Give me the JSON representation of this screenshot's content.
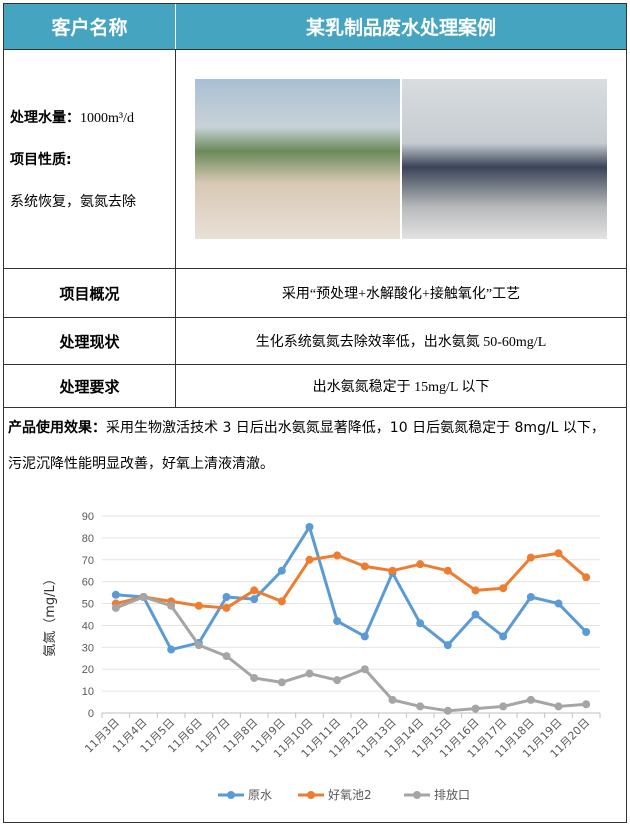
{
  "header": {
    "col1": "客户名称",
    "col2": "某乳制品废水处理案例"
  },
  "info": {
    "volume_label": "处理水量：",
    "volume_value": "1000m³/d",
    "nature_label": "项目性质:",
    "nature_value": "系统恢复，氨氮去除"
  },
  "rows": [
    {
      "label": "项目概况",
      "value": "采用“预处理+水解酸化+接触氧化”工艺"
    },
    {
      "label": "处理现状",
      "value": "生化系统氨氮去除效率低，出水氨氮 50-60mg/L"
    },
    {
      "label": "处理要求",
      "value": "出水氨氮稳定于 15mg/L 以下"
    }
  ],
  "effect": {
    "label": "产品使用效果：",
    "text": "采用生物激活技术 3 日后出水氨氮显著降低，10 日后氨氮稳定于 8mg/L 以下，污泥沉降性能明显改善，好氧上清液清澈。"
  },
  "chart_data": {
    "type": "line",
    "ylabel": "氨氮（mg/L）",
    "ylim": [
      0,
      90
    ],
    "yticks": [
      0,
      10,
      20,
      30,
      40,
      50,
      60,
      70,
      80,
      90
    ],
    "grid": true,
    "legend_position": "bottom",
    "categories": [
      "11月3日",
      "11月4日",
      "11月5日",
      "11月6日",
      "11月7日",
      "11月8日",
      "11月9日",
      "11月10日",
      "11月11日",
      "11月12日",
      "11月13日",
      "11月14日",
      "11月15日",
      "11月16日",
      "11月17日",
      "11月18日",
      "11月19日",
      "11月20日"
    ],
    "series": [
      {
        "name": "原水",
        "color": "#5b9bd5",
        "values": [
          54,
          53,
          29,
          32,
          53,
          52,
          65,
          85,
          42,
          35,
          64,
          41,
          31,
          45,
          35,
          53,
          50,
          37
        ]
      },
      {
        "name": "好氧池2",
        "color": "#ed7d31",
        "values": [
          50,
          53,
          51,
          49,
          48,
          56,
          51,
          70,
          72,
          67,
          65,
          68,
          65,
          56,
          57,
          71,
          73,
          62
        ]
      },
      {
        "name": "排放口",
        "color": "#a5a5a5",
        "values": [
          48,
          53,
          49,
          31,
          26,
          16,
          14,
          18,
          15,
          20,
          6,
          3,
          1,
          2,
          3,
          6,
          3,
          4
        ]
      }
    ]
  }
}
